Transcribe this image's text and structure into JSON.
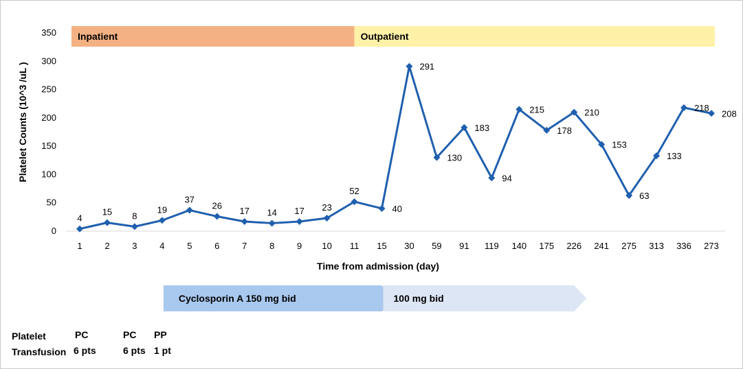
{
  "chart_data": {
    "type": "line",
    "ylabel": "Platelet  Counts  (10^3 /uL )",
    "xlabel": "Time from admission  (day)",
    "ylim": [
      0,
      350
    ],
    "yticks": [
      "0",
      "50",
      "100",
      "150",
      "200",
      "250",
      "300",
      "350"
    ],
    "ytick_values": [
      0,
      50,
      100,
      150,
      200,
      250,
      300,
      350
    ],
    "categories": [
      "1",
      "2",
      "3",
      "4",
      "5",
      "6",
      "7",
      "8",
      "9",
      "10",
      "11",
      "15",
      "30",
      "59",
      "91",
      "119",
      "140",
      "175",
      "226",
      "241",
      "275",
      "313",
      "336",
      "273"
    ],
    "values": [
      4,
      15,
      8,
      19,
      37,
      26,
      17,
      14,
      17,
      23,
      52,
      40,
      291,
      130,
      183,
      94,
      215,
      178,
      210,
      153,
      63,
      133,
      218,
      208
    ],
    "data_labels": [
      "4",
      "15",
      "8",
      "19",
      "37",
      "26",
      "17",
      "14",
      "17",
      "23",
      "52",
      "40",
      "291",
      "130",
      "183",
      "94",
      "215",
      "178",
      "210",
      "153",
      "63",
      "133",
      "218",
      "208"
    ],
    "grid": false,
    "colors": {
      "line": "#1f5fae",
      "inpatient": "#f4b183",
      "outpatient": "#fff2a8",
      "cyclo_150": "#a9c8ee",
      "cyclo_100": "#dde6f4"
    },
    "phases": [
      {
        "label": "Inpatient",
        "from_index": 0,
        "to_index": 10
      },
      {
        "label": "Outpatient",
        "from_index": 10,
        "to_index": 23
      }
    ],
    "treatments": [
      {
        "label": "Cyclosporin A 150 mg bid",
        "from_index": 3,
        "to_index": 11
      },
      {
        "label": "100 mg bid",
        "from_index": 11,
        "to_index": 18
      }
    ]
  },
  "transfusion": {
    "row_label_1": "Platelet",
    "row_label_2": "Transfusion",
    "events": [
      {
        "type": "PC",
        "amount": "6 pts"
      },
      {
        "type": "PC",
        "amount": "6 pts"
      },
      {
        "type": "PP",
        "amount": "1 pt"
      }
    ]
  }
}
